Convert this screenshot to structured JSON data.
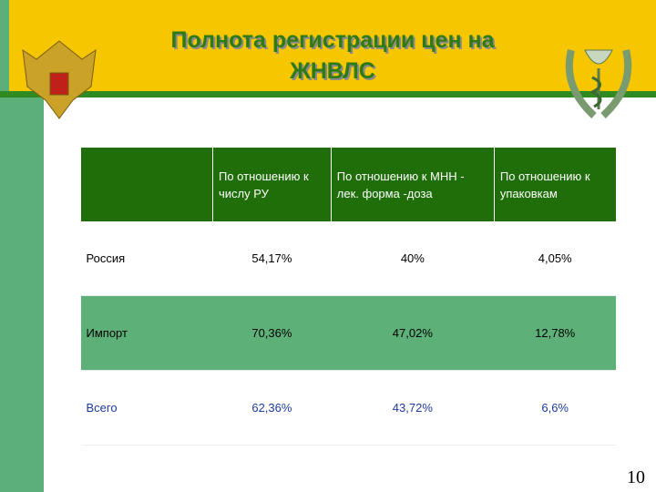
{
  "header": {
    "title_lines": [
      "Полнота регистрации цен на",
      "ЖНВЛС"
    ]
  },
  "table": {
    "columns": [
      "По отношению к числу РУ",
      "По отношению к МНН - лек. форма -доза",
      "По отношению к упаковкам"
    ],
    "rows": [
      {
        "label": "Россия",
        "cells": [
          "54,17%",
          "40%",
          "4,05%"
        ]
      },
      {
        "label": "Импорт",
        "cells": [
          "70,36%",
          "47,02%",
          "12,78%"
        ]
      },
      {
        "label": "Всего",
        "cells": [
          "62,36%",
          "43,72%",
          "6,6%"
        ]
      }
    ]
  },
  "page_number": "10"
}
